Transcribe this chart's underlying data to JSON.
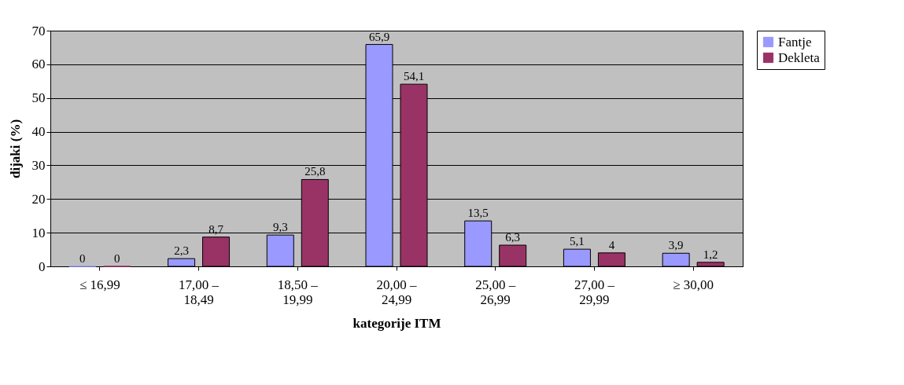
{
  "chart_data": {
    "type": "bar",
    "xlabel": "kategorije ITM",
    "ylabel": "dijaki (%)",
    "categories": [
      "≤ 16,99",
      "17,00 –\n18,49",
      "18,50 –\n19,99",
      "20,00 –\n24,99",
      "25,00 –\n26,99",
      "27,00 –\n29,99",
      "≥ 30,00"
    ],
    "series": [
      {
        "name": "Fantje",
        "color": "#9999ff",
        "values": [
          0,
          2.3,
          9.3,
          65.9,
          13.5,
          5.1,
          3.9
        ],
        "value_labels": [
          "0",
          "2,3",
          "9,3",
          "65,9",
          "13,5",
          "5,1",
          "3,9"
        ]
      },
      {
        "name": "Dekleta",
        "color": "#993366",
        "values": [
          0,
          8.7,
          25.8,
          54.1,
          6.3,
          4,
          1.2
        ],
        "value_labels": [
          "0",
          "8,7",
          "25,8",
          "54,1",
          "6,3",
          "4",
          "1,2"
        ]
      }
    ],
    "ylim": [
      0,
      70
    ],
    "yticks": [
      0,
      10,
      20,
      30,
      40,
      50,
      60,
      70
    ],
    "grid": "y",
    "legend": "right"
  }
}
